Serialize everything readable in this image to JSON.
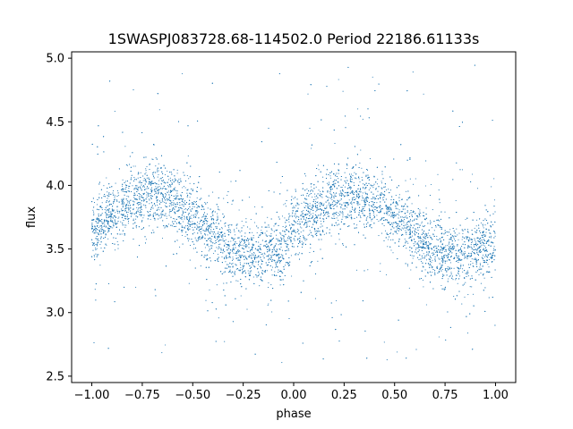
{
  "chart_data": {
    "type": "scatter",
    "title": "1SWASPJ083728.68-114502.0 Period 22186.61133s",
    "xlabel": "phase",
    "ylabel": "flux",
    "xlim": [
      -1.1,
      1.1
    ],
    "ylim": [
      2.45,
      5.05
    ],
    "x_ticks": [
      -1.0,
      -0.75,
      -0.5,
      -0.25,
      0.0,
      0.25,
      0.5,
      0.75,
      1.0
    ],
    "x_tick_labels": [
      "−1.00",
      "−0.75",
      "−0.50",
      "−0.25",
      "0.00",
      "0.25",
      "0.50",
      "0.75",
      "1.00"
    ],
    "y_ticks": [
      2.5,
      3.0,
      3.5,
      4.0,
      4.5,
      5.0
    ],
    "y_tick_labels": [
      "2.5",
      "3.0",
      "3.5",
      "4.0",
      "4.5",
      "5.0"
    ],
    "grid": false,
    "marker_color": "#1f77b4",
    "series": [
      {
        "phase_range": [
          -1.0,
          1.0
        ],
        "profile": [
          {
            "phase": -1.0,
            "flux": 3.62
          },
          {
            "phase": -0.9,
            "flux": 3.78
          },
          {
            "phase": -0.8,
            "flux": 3.88
          },
          {
            "phase": -0.7,
            "flux": 3.94
          },
          {
            "phase": -0.6,
            "flux": 3.88
          },
          {
            "phase": -0.5,
            "flux": 3.75
          },
          {
            "phase": -0.4,
            "flux": 3.62
          },
          {
            "phase": -0.3,
            "flux": 3.48
          },
          {
            "phase": -0.2,
            "flux": 3.45
          },
          {
            "phase": -0.1,
            "flux": 3.48
          },
          {
            "phase": 0.0,
            "flux": 3.62
          },
          {
            "phase": 0.1,
            "flux": 3.78
          },
          {
            "phase": 0.2,
            "flux": 3.88
          },
          {
            "phase": 0.3,
            "flux": 3.94
          },
          {
            "phase": 0.4,
            "flux": 3.88
          },
          {
            "phase": 0.5,
            "flux": 3.75
          },
          {
            "phase": 0.6,
            "flux": 3.62
          },
          {
            "phase": 0.7,
            "flux": 3.48
          },
          {
            "phase": 0.8,
            "flux": 3.45
          },
          {
            "phase": 0.9,
            "flux": 3.48
          },
          {
            "phase": 1.0,
            "flux": 3.55
          }
        ],
        "scatter_sigma": 0.12,
        "outlier_range": [
          2.6,
          4.95
        ],
        "n_points": 9000
      }
    ]
  }
}
